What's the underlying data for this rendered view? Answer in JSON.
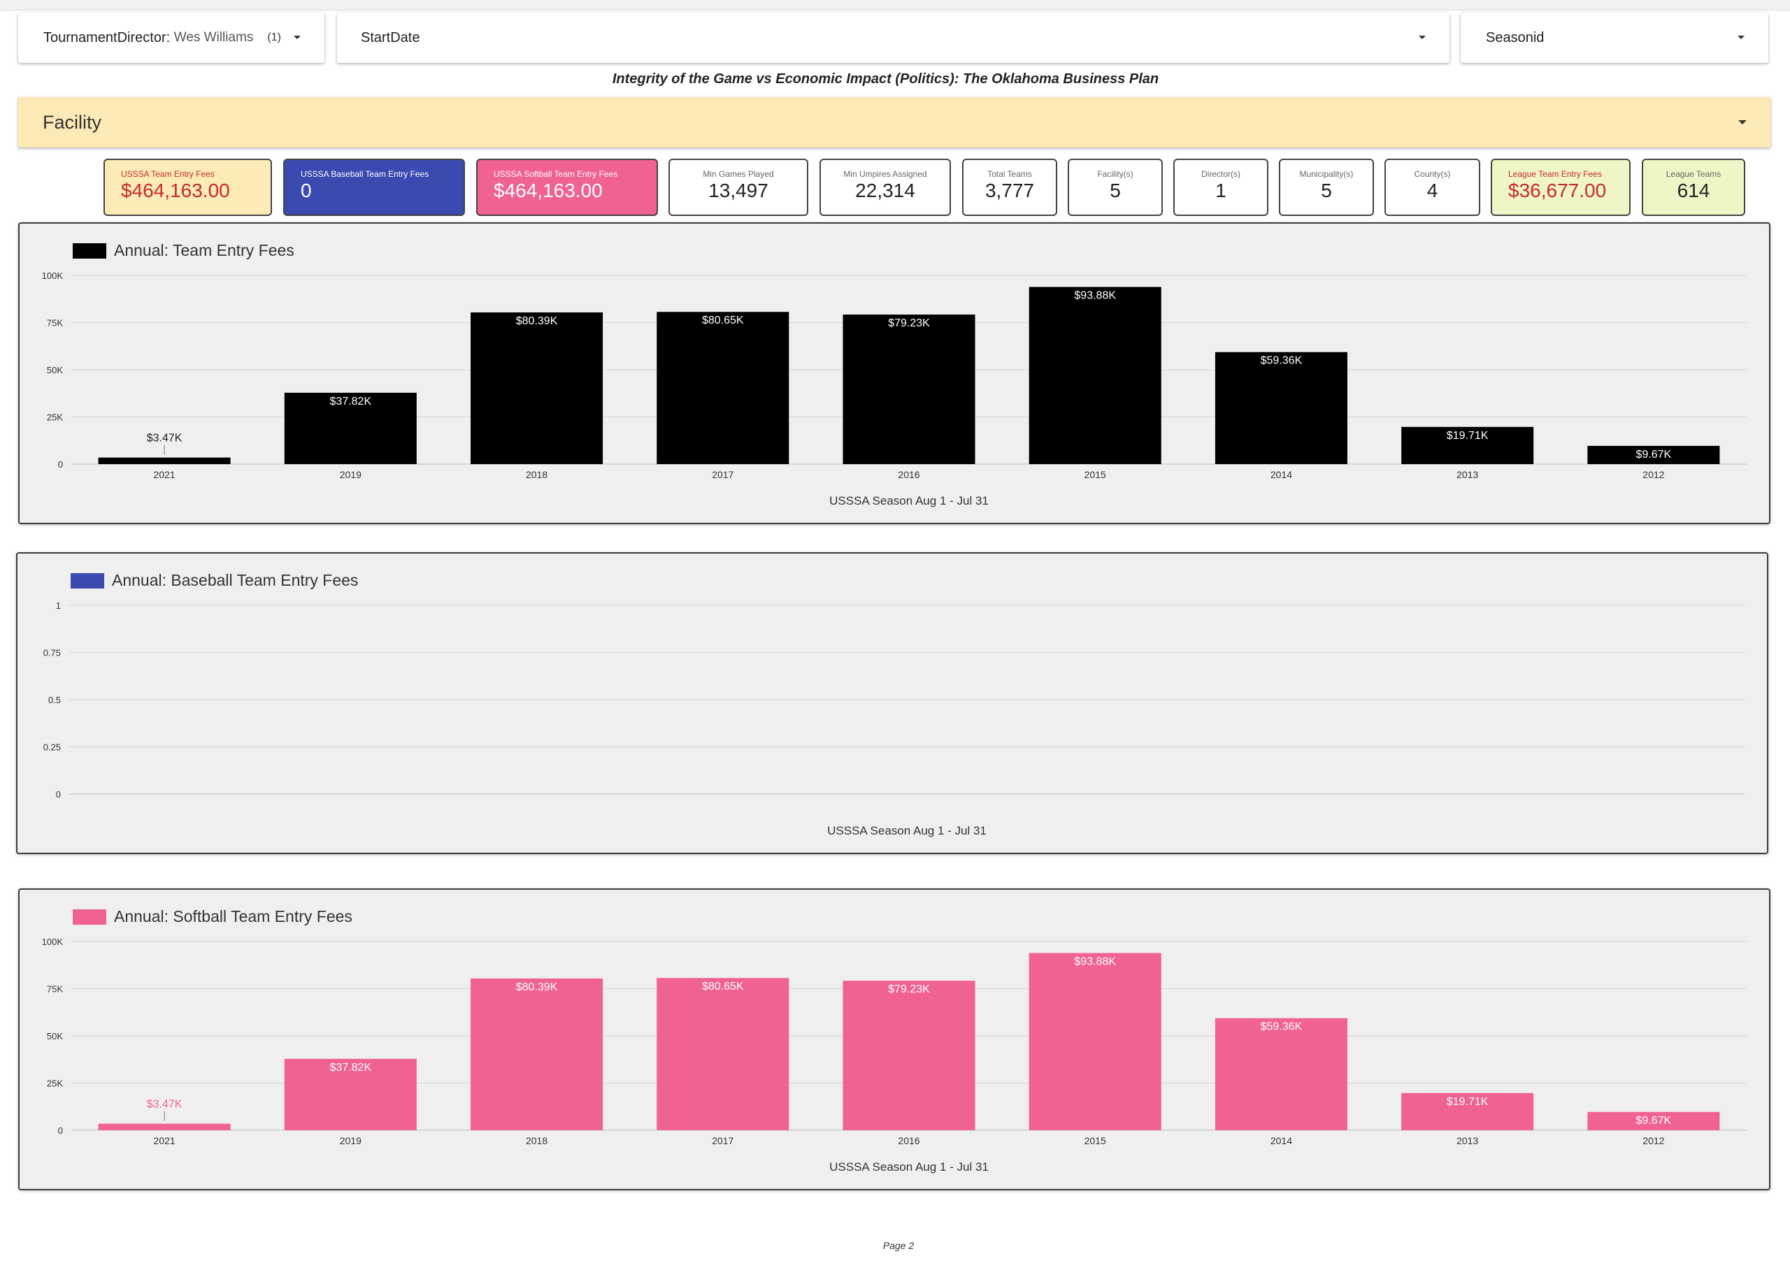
{
  "filters": {
    "tournament_director": {
      "label": "TournamentDirector",
      "value": "Wes Williams",
      "count": "(1)"
    },
    "start_date": {
      "label": "StartDate"
    },
    "season_id": {
      "label": "Seasonid"
    }
  },
  "report_title": "Integrity of the Game vs Economic Impact (Politics): The Oklahoma Business Plan",
  "facility": {
    "label": "Facility"
  },
  "kpis": [
    {
      "label": "USSSA Team Entry Fees",
      "value": "$464,163.00",
      "style": "yellow"
    },
    {
      "label": "USSSA Baseball Team Entry Fees",
      "value": "0",
      "style": "blue"
    },
    {
      "label": "USSSA Softball Team Entry Fees",
      "value": "$464,163.00",
      "style": "pink"
    },
    {
      "label": "Min Games Played",
      "value": "13,497",
      "style": "white"
    },
    {
      "label": "Min Umpires Assigned",
      "value": "22,314",
      "style": "white"
    },
    {
      "label": "Total Teams",
      "value": "3,777",
      "style": "white"
    },
    {
      "label": "Facility(s)",
      "value": "5",
      "style": "white"
    },
    {
      "label": "Director(s)",
      "value": "1",
      "style": "white"
    },
    {
      "label": "Municipality(s)",
      "value": "5",
      "style": "white"
    },
    {
      "label": "County(s)",
      "value": "4",
      "style": "white"
    },
    {
      "label": "League Team Entry Fees",
      "value": "$36,677.00",
      "style": "green-red"
    },
    {
      "label": "League Teams",
      "value": "614",
      "style": "green"
    }
  ],
  "colors": {
    "total": "#000000",
    "baseball": "#3a4ab0",
    "softball": "#f06292"
  },
  "chart_data": [
    {
      "type": "bar",
      "title": "Annual: Team Entry Fees",
      "legend": "Annual: Team Entry Fees",
      "xlabel": "USSSA Season Aug 1 - Jul 31",
      "categories": [
        "2021",
        "2019",
        "2018",
        "2017",
        "2016",
        "2015",
        "2014",
        "2013",
        "2012"
      ],
      "values": [
        3470,
        37820,
        80390,
        80650,
        79230,
        93880,
        59360,
        19710,
        9670
      ],
      "value_labels": [
        "$3.47K",
        "$37.82K",
        "$80.39K",
        "$80.65K",
        "$79.23K",
        "$93.88K",
        "$59.36K",
        "$19.71K",
        "$9.67K"
      ],
      "ylim": [
        0,
        100000
      ],
      "yticks": [
        0,
        25000,
        50000,
        75000,
        100000
      ],
      "ytick_labels": [
        "0",
        "25K",
        "50K",
        "75K",
        "100K"
      ],
      "color": "#000000",
      "grid": true,
      "legend_position": "top-left"
    },
    {
      "type": "bar",
      "title": "Annual: Baseball Team Entry Fees",
      "legend": "Annual: Baseball Team Entry Fees",
      "xlabel": "USSSA Season Aug 1 - Jul 31",
      "categories": [],
      "values": [],
      "value_labels": [],
      "ylim": [
        0,
        1
      ],
      "yticks": [
        0,
        0.25,
        0.5,
        0.75,
        1
      ],
      "ytick_labels": [
        "0",
        "0.25",
        "0.5",
        "0.75",
        "1"
      ],
      "color": "#3a4ab0",
      "grid": true,
      "legend_position": "top-left"
    },
    {
      "type": "bar",
      "title": "Annual: Softball Team Entry Fees",
      "legend": "Annual: Softball Team Entry Fees",
      "xlabel": "USSSA Season Aug 1 - Jul 31",
      "categories": [
        "2021",
        "2019",
        "2018",
        "2017",
        "2016",
        "2015",
        "2014",
        "2013",
        "2012"
      ],
      "values": [
        3470,
        37820,
        80390,
        80650,
        79230,
        93880,
        59360,
        19710,
        9670
      ],
      "value_labels": [
        "$3.47K",
        "$37.82K",
        "$80.39K",
        "$80.65K",
        "$79.23K",
        "$93.88K",
        "$59.36K",
        "$19.71K",
        "$9.67K"
      ],
      "ylim": [
        0,
        100000
      ],
      "yticks": [
        0,
        25000,
        50000,
        75000,
        100000
      ],
      "ytick_labels": [
        "0",
        "25K",
        "50K",
        "75K",
        "100K"
      ],
      "color": "#f06292",
      "grid": true,
      "legend_position": "top-left"
    }
  ],
  "footer": {
    "page": "Page 2"
  }
}
